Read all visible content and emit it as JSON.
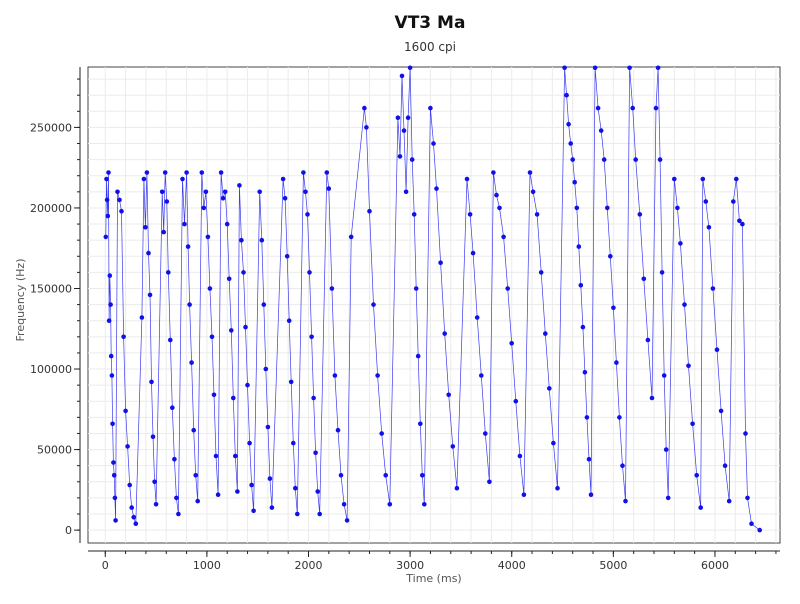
{
  "chart_data": {
    "type": "scatter",
    "title": "VT3 Ma",
    "subtitle": "1600 cpi",
    "xlabel": "Time (ms)",
    "ylabel": "Frequency (Hz)",
    "xlim": [
      -170,
      6640
    ],
    "ylim": [
      -8000,
      287500
    ],
    "x_ticks": [
      0,
      1000,
      2000,
      3000,
      4000,
      5000,
      6000
    ],
    "x_tick_labels": [
      "0",
      "1000",
      "2000",
      "3000",
      "4000",
      "5000",
      "6000"
    ],
    "y_ticks": [
      0,
      50000,
      100000,
      150000,
      200000,
      250000
    ],
    "y_tick_labels": [
      "0",
      "50000",
      "100000",
      "150000",
      "200000",
      "250000"
    ],
    "grid": true,
    "legend": "none",
    "colors": {
      "series": "#1010e8",
      "line": "#3a3af0"
    },
    "series": [
      {
        "points": [
          [
            5,
            182000
          ],
          [
            12,
            218000
          ],
          [
            18,
            205000
          ],
          [
            25,
            195000
          ],
          [
            32,
            222000
          ],
          [
            38,
            130000
          ],
          [
            45,
            158000
          ],
          [
            52,
            140000
          ],
          [
            58,
            108000
          ],
          [
            65,
            96000
          ],
          [
            72,
            66000
          ],
          [
            80,
            42000
          ],
          [
            88,
            34000
          ],
          [
            95,
            20000
          ],
          [
            102,
            6000
          ],
          [
            120,
            210000
          ],
          [
            140,
            205000
          ],
          [
            160,
            198000
          ],
          [
            180,
            120000
          ],
          [
            200,
            74000
          ],
          [
            220,
            52000
          ],
          [
            240,
            28000
          ],
          [
            260,
            14000
          ],
          [
            280,
            8000
          ],
          [
            300,
            4000
          ],
          [
            360,
            132000
          ],
          [
            380,
            218000
          ],
          [
            395,
            188000
          ],
          [
            410,
            222000
          ],
          [
            425,
            172000
          ],
          [
            440,
            146000
          ],
          [
            455,
            92000
          ],
          [
            470,
            58000
          ],
          [
            485,
            30000
          ],
          [
            500,
            16000
          ],
          [
            560,
            210000
          ],
          [
            575,
            185000
          ],
          [
            590,
            222000
          ],
          [
            605,
            204000
          ],
          [
            620,
            160000
          ],
          [
            640,
            118000
          ],
          [
            660,
            76000
          ],
          [
            680,
            44000
          ],
          [
            700,
            20000
          ],
          [
            720,
            10000
          ],
          [
            760,
            218000
          ],
          [
            780,
            190000
          ],
          [
            800,
            222000
          ],
          [
            815,
            176000
          ],
          [
            830,
            140000
          ],
          [
            850,
            104000
          ],
          [
            870,
            62000
          ],
          [
            890,
            34000
          ],
          [
            910,
            18000
          ],
          [
            950,
            222000
          ],
          [
            970,
            200000
          ],
          [
            990,
            210000
          ],
          [
            1010,
            182000
          ],
          [
            1030,
            150000
          ],
          [
            1050,
            120000
          ],
          [
            1070,
            84000
          ],
          [
            1090,
            46000
          ],
          [
            1110,
            22000
          ],
          [
            1140,
            222000
          ],
          [
            1160,
            206000
          ],
          [
            1180,
            210000
          ],
          [
            1200,
            190000
          ],
          [
            1220,
            156000
          ],
          [
            1240,
            124000
          ],
          [
            1260,
            82000
          ],
          [
            1280,
            46000
          ],
          [
            1300,
            24000
          ],
          [
            1320,
            214000
          ],
          [
            1340,
            180000
          ],
          [
            1360,
            160000
          ],
          [
            1380,
            126000
          ],
          [
            1400,
            90000
          ],
          [
            1420,
            54000
          ],
          [
            1440,
            28000
          ],
          [
            1460,
            12000
          ],
          [
            1520,
            210000
          ],
          [
            1540,
            180000
          ],
          [
            1560,
            140000
          ],
          [
            1580,
            100000
          ],
          [
            1600,
            64000
          ],
          [
            1620,
            32000
          ],
          [
            1640,
            14000
          ],
          [
            1750,
            218000
          ],
          [
            1770,
            206000
          ],
          [
            1790,
            170000
          ],
          [
            1810,
            130000
          ],
          [
            1830,
            92000
          ],
          [
            1850,
            54000
          ],
          [
            1870,
            26000
          ],
          [
            1890,
            10000
          ],
          [
            1950,
            222000
          ],
          [
            1970,
            210000
          ],
          [
            1990,
            196000
          ],
          [
            2010,
            160000
          ],
          [
            2030,
            120000
          ],
          [
            2050,
            82000
          ],
          [
            2070,
            48000
          ],
          [
            2090,
            24000
          ],
          [
            2110,
            10000
          ],
          [
            2180,
            222000
          ],
          [
            2200,
            212000
          ],
          [
            2230,
            150000
          ],
          [
            2260,
            96000
          ],
          [
            2290,
            62000
          ],
          [
            2320,
            34000
          ],
          [
            2350,
            16000
          ],
          [
            2380,
            6000
          ],
          [
            2420,
            182000
          ],
          [
            2550,
            262000
          ],
          [
            2570,
            250000
          ],
          [
            2600,
            198000
          ],
          [
            2640,
            140000
          ],
          [
            2680,
            96000
          ],
          [
            2720,
            60000
          ],
          [
            2760,
            34000
          ],
          [
            2800,
            16000
          ],
          [
            2880,
            256000
          ],
          [
            2900,
            232000
          ],
          [
            2920,
            282000
          ],
          [
            2940,
            248000
          ],
          [
            2960,
            210000
          ],
          [
            2980,
            256000
          ],
          [
            3000,
            287000
          ],
          [
            3020,
            230000
          ],
          [
            3040,
            196000
          ],
          [
            3060,
            150000
          ],
          [
            3080,
            108000
          ],
          [
            3100,
            66000
          ],
          [
            3120,
            34000
          ],
          [
            3140,
            16000
          ],
          [
            3200,
            262000
          ],
          [
            3230,
            240000
          ],
          [
            3260,
            212000
          ],
          [
            3300,
            166000
          ],
          [
            3340,
            122000
          ],
          [
            3380,
            84000
          ],
          [
            3420,
            52000
          ],
          [
            3460,
            26000
          ],
          [
            3560,
            218000
          ],
          [
            3590,
            196000
          ],
          [
            3620,
            172000
          ],
          [
            3660,
            132000
          ],
          [
            3700,
            96000
          ],
          [
            3740,
            60000
          ],
          [
            3780,
            30000
          ],
          [
            3820,
            222000
          ],
          [
            3850,
            208000
          ],
          [
            3880,
            200000
          ],
          [
            3920,
            182000
          ],
          [
            3960,
            150000
          ],
          [
            4000,
            116000
          ],
          [
            4040,
            80000
          ],
          [
            4080,
            46000
          ],
          [
            4120,
            22000
          ],
          [
            4180,
            222000
          ],
          [
            4210,
            210000
          ],
          [
            4250,
            196000
          ],
          [
            4290,
            160000
          ],
          [
            4330,
            122000
          ],
          [
            4370,
            88000
          ],
          [
            4410,
            54000
          ],
          [
            4450,
            26000
          ],
          [
            4520,
            287000
          ],
          [
            4540,
            270000
          ],
          [
            4560,
            252000
          ],
          [
            4580,
            240000
          ],
          [
            4600,
            230000
          ],
          [
            4620,
            216000
          ],
          [
            4640,
            200000
          ],
          [
            4660,
            176000
          ],
          [
            4680,
            152000
          ],
          [
            4700,
            126000
          ],
          [
            4720,
            98000
          ],
          [
            4740,
            70000
          ],
          [
            4760,
            44000
          ],
          [
            4780,
            22000
          ],
          [
            4820,
            287000
          ],
          [
            4850,
            262000
          ],
          [
            4880,
            248000
          ],
          [
            4910,
            230000
          ],
          [
            4940,
            200000
          ],
          [
            4970,
            170000
          ],
          [
            5000,
            138000
          ],
          [
            5030,
            104000
          ],
          [
            5060,
            70000
          ],
          [
            5090,
            40000
          ],
          [
            5120,
            18000
          ],
          [
            5160,
            287000
          ],
          [
            5190,
            262000
          ],
          [
            5220,
            230000
          ],
          [
            5260,
            196000
          ],
          [
            5300,
            156000
          ],
          [
            5340,
            118000
          ],
          [
            5380,
            82000
          ],
          [
            5420,
            262000
          ],
          [
            5440,
            287000
          ],
          [
            5460,
            230000
          ],
          [
            5480,
            160000
          ],
          [
            5500,
            96000
          ],
          [
            5520,
            50000
          ],
          [
            5540,
            20000
          ],
          [
            5600,
            218000
          ],
          [
            5630,
            200000
          ],
          [
            5660,
            178000
          ],
          [
            5700,
            140000
          ],
          [
            5740,
            102000
          ],
          [
            5780,
            66000
          ],
          [
            5820,
            34000
          ],
          [
            5860,
            14000
          ],
          [
            5880,
            218000
          ],
          [
            5910,
            204000
          ],
          [
            5940,
            188000
          ],
          [
            5980,
            150000
          ],
          [
            6020,
            112000
          ],
          [
            6060,
            74000
          ],
          [
            6100,
            40000
          ],
          [
            6140,
            18000
          ],
          [
            6180,
            204000
          ],
          [
            6210,
            218000
          ],
          [
            6240,
            192000
          ],
          [
            6270,
            190000
          ],
          [
            6300,
            60000
          ],
          [
            6320,
            20000
          ],
          [
            6360,
            4000
          ],
          [
            6440,
            0
          ]
        ]
      }
    ]
  }
}
